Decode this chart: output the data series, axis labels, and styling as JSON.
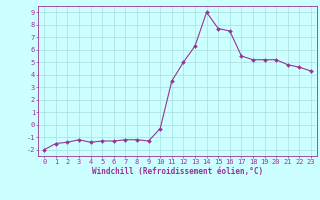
{
  "x": [
    0,
    1,
    2,
    3,
    4,
    5,
    6,
    7,
    8,
    9,
    10,
    11,
    12,
    13,
    14,
    15,
    16,
    17,
    18,
    19,
    20,
    21,
    22,
    23
  ],
  "y": [
    -2,
    -1.5,
    -1.4,
    -1.2,
    -1.4,
    -1.3,
    -1.3,
    -1.2,
    -1.2,
    -1.3,
    -0.3,
    3.5,
    5.0,
    6.3,
    9.0,
    7.7,
    7.5,
    5.5,
    5.2,
    5.2,
    5.2,
    4.8,
    4.6,
    4.3
  ],
  "line_color": "#993399",
  "marker": "D",
  "marker_size": 2,
  "bg_color": "#ccffff",
  "grid_color": "#aadddd",
  "xlabel": "Windchill (Refroidissement éolien,°C)",
  "xlim": [
    -0.5,
    23.5
  ],
  "ylim": [
    -2.5,
    9.5
  ],
  "yticks": [
    -2,
    -1,
    0,
    1,
    2,
    3,
    4,
    5,
    6,
    7,
    8,
    9
  ],
  "xticks": [
    0,
    1,
    2,
    3,
    4,
    5,
    6,
    7,
    8,
    9,
    10,
    11,
    12,
    13,
    14,
    15,
    16,
    17,
    18,
    19,
    20,
    21,
    22,
    23
  ],
  "label_color": "#993399",
  "tick_color": "#993399",
  "spine_color": "#993399",
  "tick_fontsize": 5,
  "xlabel_fontsize": 5.5
}
